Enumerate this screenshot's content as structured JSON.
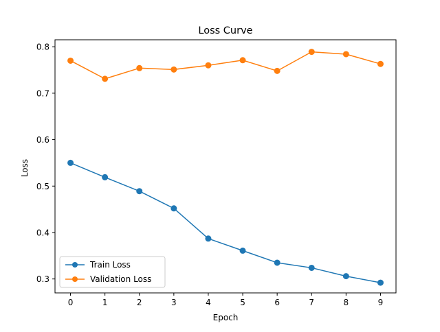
{
  "chart_data": {
    "type": "line",
    "title": "Loss Curve",
    "xlabel": "Epoch",
    "ylabel": "Loss",
    "x": [
      0,
      1,
      2,
      3,
      4,
      5,
      6,
      7,
      8,
      9
    ],
    "xlim": [
      -0.45,
      9.45
    ],
    "ylim": [
      0.27,
      0.815
    ],
    "xticks": [
      0,
      1,
      2,
      3,
      4,
      5,
      6,
      7,
      8,
      9
    ],
    "yticks": [
      0.3,
      0.4,
      0.5,
      0.6,
      0.7,
      0.8
    ],
    "ytick_labels": [
      "0.3",
      "0.4",
      "0.5",
      "0.6",
      "0.7",
      "0.8"
    ],
    "grid": false,
    "legend_position": "lower-left",
    "series": [
      {
        "name": "Train Loss",
        "color": "#1f77b4",
        "marker": "circle",
        "values": [
          0.55,
          0.519,
          0.489,
          0.452,
          0.387,
          0.361,
          0.335,
          0.324,
          0.306,
          0.292
        ]
      },
      {
        "name": "Validation Loss",
        "color": "#ff7f0e",
        "marker": "circle",
        "values": [
          0.77,
          0.731,
          0.754,
          0.751,
          0.76,
          0.771,
          0.748,
          0.789,
          0.784,
          0.763
        ]
      }
    ]
  }
}
